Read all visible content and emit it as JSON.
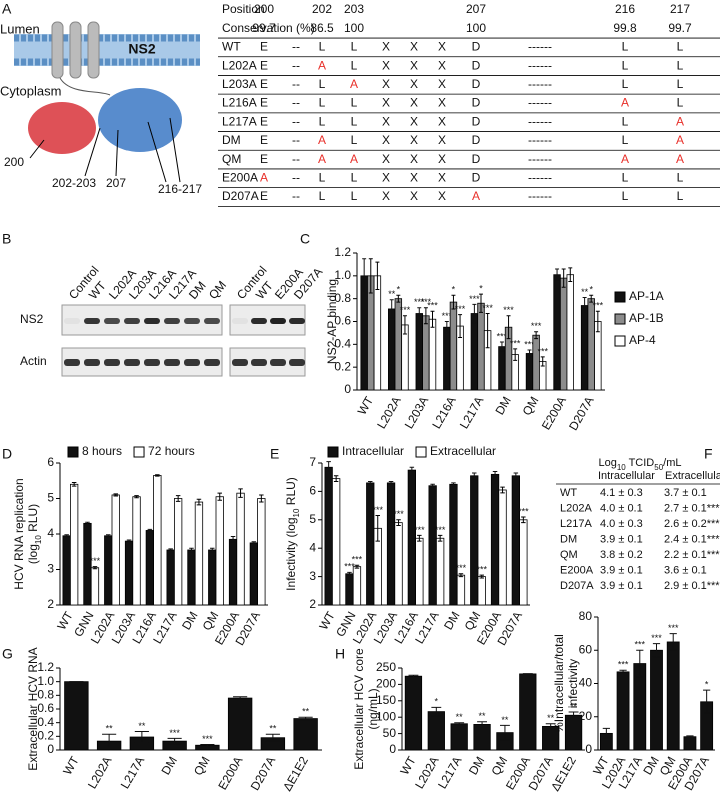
{
  "panels": [
    "A",
    "B",
    "C",
    "D",
    "E",
    "F",
    "G",
    "H"
  ],
  "schematic": {
    "labels": [
      "Lumen",
      "NS2",
      "Cytoplasm",
      "200",
      "202-203",
      "207",
      "216-217"
    ]
  },
  "table_a": {
    "position": [
      "Position",
      200,
      202,
      203,
      207,
      216,
      217
    ],
    "conservation": [
      "Conservation (%)",
      99.7,
      86.5,
      100,
      100,
      99.8,
      99.7
    ],
    "rows": [
      [
        "WT",
        "E",
        "--",
        "L",
        "L",
        "X",
        "X",
        "X",
        "D",
        "------",
        "L",
        "L"
      ],
      [
        "L202A",
        "E",
        "--",
        {
          "text": "A",
          "color": "#e8302a"
        },
        "L",
        "X",
        "X",
        "X",
        "D",
        "------",
        "L",
        "L"
      ],
      [
        "L203A",
        "E",
        "--",
        "L",
        {
          "text": "A",
          "color": "#e8302a"
        },
        "X",
        "X",
        "X",
        "D",
        "------",
        "L",
        "L"
      ],
      [
        "L216A",
        "E",
        "--",
        "L",
        "L",
        "X",
        "X",
        "X",
        "D",
        "------",
        {
          "text": "A",
          "color": "#e8302a"
        },
        "L"
      ],
      [
        "L217A",
        "E",
        "--",
        "L",
        "L",
        "X",
        "X",
        "X",
        "D",
        "------",
        "L",
        {
          "text": "A",
          "color": "#e8302a"
        }
      ],
      [
        "DM",
        "E",
        "--",
        {
          "text": "A",
          "color": "#e8302a"
        },
        "L",
        "X",
        "X",
        "X",
        "D",
        "------",
        "L",
        {
          "text": "A",
          "color": "#e8302a"
        }
      ],
      [
        "QM",
        "E",
        "--",
        {
          "text": "A",
          "color": "#e8302a"
        },
        {
          "text": "A",
          "color": "#e8302a"
        },
        "X",
        "X",
        "X",
        "D",
        "------",
        {
          "text": "A",
          "color": "#e8302a"
        },
        {
          "text": "A",
          "color": "#e8302a"
        }
      ],
      [
        "E200A",
        {
          "text": "A",
          "color": "#e8302a"
        },
        "--",
        "L",
        "L",
        "X",
        "X",
        "X",
        "D",
        "------",
        "L",
        "L"
      ],
      [
        "D207A",
        "E",
        "--",
        "L",
        "L",
        "X",
        "X",
        "X",
        {
          "text": "A",
          "color": "#e8302a"
        },
        "------",
        "L",
        "L"
      ]
    ]
  },
  "blot": {
    "lanes": [
      "Control",
      "WT",
      "L202A",
      "L203A",
      "L216A",
      "L217A",
      "DM",
      "QM",
      "Control",
      "WT",
      "E200A",
      "D207A"
    ],
    "rows": [
      "NS2",
      "Actin"
    ]
  },
  "table_f": {
    "title": [
      {
        "text": "Log"
      },
      {
        "text": "10",
        "sub": true
      },
      {
        "text": " TCID"
      },
      {
        "text": "50",
        "sub": true
      },
      {
        "text": "/mL"
      }
    ],
    "columns": [
      "Intracellular",
      "Extracellular"
    ],
    "rows": [
      [
        "WT",
        "4.1 ± 0.3",
        "3.7 ± 0.1"
      ],
      [
        "L202A",
        "4.0 ± 0.1",
        "2.7 ± 0.1***"
      ],
      [
        "L217A",
        "4.0 ± 0.3",
        "2.6 ± 0.2***"
      ],
      [
        "DM",
        "3.9 ± 0.1",
        "2.4 ± 0.1***"
      ],
      [
        "QM",
        "3.8 ± 0.2",
        "2.2 ± 0.1***"
      ],
      [
        "E200A",
        "3.9 ± 0.1",
        "3.6 ± 0.1"
      ],
      [
        "D207A",
        "3.9 ± 0.1",
        "2.9 ± 0.1***"
      ]
    ]
  },
  "chart_data": [
    {
      "type": "bar",
      "y_label": [
        "NS2-AP binding"
      ],
      "legend": "right",
      "categories": [
        "WT",
        "L202A",
        "L203A",
        "L216A",
        "L217A",
        "DM",
        "QM",
        "E200A",
        "D207A"
      ],
      "series": [
        {
          "name": "AP-1A",
          "color": "#111111",
          "values": [
            1.0,
            0.71,
            0.67,
            0.55,
            0.67,
            0.38,
            0.32,
            1.01,
            0.74
          ],
          "errors": [
            0.15,
            0.08,
            0.05,
            0.05,
            0.08,
            0.04,
            0.03,
            0.05,
            0.07
          ],
          "annotations": [
            null,
            "**",
            "***",
            "***",
            "***",
            "***",
            "***",
            null,
            "**"
          ]
        },
        {
          "name": "AP-1B",
          "color": "#8c8c8c",
          "values": [
            1.0,
            0.8,
            0.65,
            0.77,
            0.76,
            0.55,
            0.48,
            0.98,
            0.8
          ],
          "errors": [
            0.15,
            0.03,
            0.07,
            0.06,
            0.08,
            0.1,
            0.03,
            0.08,
            0.03
          ],
          "annotations": [
            null,
            "*",
            "***",
            "*",
            "*",
            "***",
            "***",
            null,
            "*"
          ]
        },
        {
          "name": "AP-4",
          "color": "#ffffff",
          "values": [
            1.0,
            0.57,
            0.62,
            0.56,
            0.52,
            0.31,
            0.25,
            1.01,
            0.6
          ],
          "errors": [
            0.12,
            0.08,
            0.07,
            0.1,
            0.15,
            0.05,
            0.04,
            0.06,
            0.09
          ],
          "annotations": [
            null,
            "***",
            "***",
            "***",
            "***",
            "***",
            "***",
            null,
            "***"
          ]
        }
      ],
      "ylim": [
        0,
        1.2
      ],
      "yticks": [
        0,
        0.2,
        0.4,
        0.6,
        0.8,
        {
          "value": 1,
          "label": "1.0"
        },
        1.2
      ]
    },
    {
      "type": "bar",
      "y_label": [
        "HCV RNA replication",
        [
          "(log",
          {
            "text": "10",
            "sub": true
          },
          " RLU)"
        ]
      ],
      "legend": "top",
      "categories": [
        "WT",
        "GNN",
        "L202A",
        "L203A",
        "L216A",
        "L217A",
        "DM",
        "QM",
        "E200A",
        "D207A"
      ],
      "series": [
        {
          "name": "8 hours",
          "color": "#111111",
          "values": [
            3.95,
            4.3,
            3.95,
            3.8,
            4.1,
            3.55,
            3.55,
            3.55,
            3.85,
            3.75
          ],
          "errors": [
            0.03,
            0.03,
            0.03,
            0.03,
            0.03,
            0.03,
            0.05,
            0.05,
            0.08,
            0.03
          ],
          "annotations": [
            null,
            null,
            null,
            null,
            null,
            null,
            null,
            null,
            null,
            null
          ]
        },
        {
          "name": "72 hours",
          "color": "#ffffff",
          "values": [
            5.4,
            3.05,
            5.1,
            5.05,
            5.65,
            5.0,
            4.9,
            5.05,
            5.15,
            5.0
          ],
          "errors": [
            0.05,
            0.03,
            0.03,
            0.03,
            0.02,
            0.08,
            0.08,
            0.1,
            0.12,
            0.1
          ],
          "annotations": [
            null,
            "***",
            null,
            null,
            null,
            null,
            null,
            null,
            null,
            null
          ]
        }
      ],
      "ylim": [
        2,
        6
      ],
      "yticks": [
        2,
        3,
        4,
        5,
        6
      ]
    },
    {
      "type": "bar",
      "y_label": [
        [
          "Infectivity (log",
          {
            "text": "10",
            "sub": true
          },
          " RLU)"
        ]
      ],
      "legend": "top",
      "categories": [
        "WT",
        "GNN",
        "L202A",
        "L203A",
        "L216A",
        "L217A",
        "DM",
        "QM",
        "E200A",
        "D207A"
      ],
      "series": [
        {
          "name": "Intracellular",
          "color": "#111111",
          "values": [
            6.85,
            3.1,
            6.3,
            6.3,
            6.75,
            6.2,
            6.25,
            6.55,
            6.6,
            6.55
          ],
          "errors": [
            0.2,
            0.05,
            0.05,
            0.05,
            0.1,
            0.05,
            0.05,
            0.1,
            0.1,
            0.1
          ],
          "annotations": [
            null,
            "***",
            null,
            null,
            null,
            null,
            null,
            null,
            null,
            null
          ]
        },
        {
          "name": "Extracellular",
          "color": "#ffffff",
          "values": [
            6.45,
            3.35,
            4.7,
            4.9,
            4.35,
            4.35,
            3.05,
            3.0,
            6.05,
            5.0
          ],
          "errors": [
            0.1,
            0.05,
            0.45,
            0.1,
            0.1,
            0.1,
            0.05,
            0.05,
            0.1,
            0.1
          ],
          "annotations": [
            null,
            "***",
            "***",
            "***",
            "***",
            "***",
            "***",
            "***",
            null,
            "***"
          ]
        }
      ],
      "ylim": [
        2,
        7
      ],
      "yticks": [
        2,
        3,
        4,
        5,
        6,
        7
      ]
    },
    {
      "type": "bar",
      "y_label": [
        "%Intracellular/total",
        "infectivity"
      ],
      "color": "#111111",
      "categories": [
        "WT",
        "L202A",
        "L217A",
        "DM",
        "QM",
        "E200A",
        "D207A"
      ],
      "values": [
        10,
        47,
        52,
        60,
        65,
        8,
        29
      ],
      "errors": [
        3,
        1,
        8,
        4,
        5,
        0.5,
        7
      ],
      "annotations": [
        null,
        "***",
        "***",
        "***",
        "***",
        null,
        "*"
      ],
      "ylim": [
        0,
        80
      ],
      "yticks": [
        0,
        20,
        40,
        60,
        80
      ]
    },
    {
      "type": "bar",
      "y_label": [
        "Extracellular HCV RNA"
      ],
      "color": "#111111",
      "categories": [
        "WT",
        "L202A",
        "L217A",
        "DM",
        "QM",
        "E200A",
        "D207A",
        "ΔE1E2"
      ],
      "values": [
        1.0,
        0.13,
        0.19,
        0.13,
        0.07,
        0.76,
        0.18,
        0.46
      ],
      "errors": [
        0,
        0.1,
        0.08,
        0.04,
        0.01,
        0.02,
        0.05,
        0.02
      ],
      "annotations": [
        null,
        "**",
        "**",
        "***",
        "***",
        null,
        "**",
        "**"
      ],
      "ylim": [
        0,
        1.2
      ],
      "yticks": [
        0,
        0.2,
        0.4,
        0.6,
        0.8,
        {
          "value": 1,
          "label": "1.0"
        },
        1.2
      ]
    },
    {
      "type": "bar",
      "y_label": [
        "Extracellular HCV core",
        "(ng/mL)"
      ],
      "color": "#111111",
      "categories": [
        "WT",
        "L202A",
        "L217A",
        "DM",
        "QM",
        "E200A",
        "D207A",
        "ΔE1E2"
      ],
      "values": [
        225,
        117,
        80,
        78,
        53,
        232,
        72,
        106
      ],
      "errors": [
        3,
        13,
        3,
        8,
        22,
        1,
        8,
        10
      ],
      "annotations": [
        null,
        "*",
        "**",
        "**",
        "**",
        null,
        "**",
        "**"
      ],
      "ylim": [
        0,
        250
      ],
      "yticks": [
        0,
        50,
        100,
        150,
        200,
        250
      ]
    }
  ]
}
